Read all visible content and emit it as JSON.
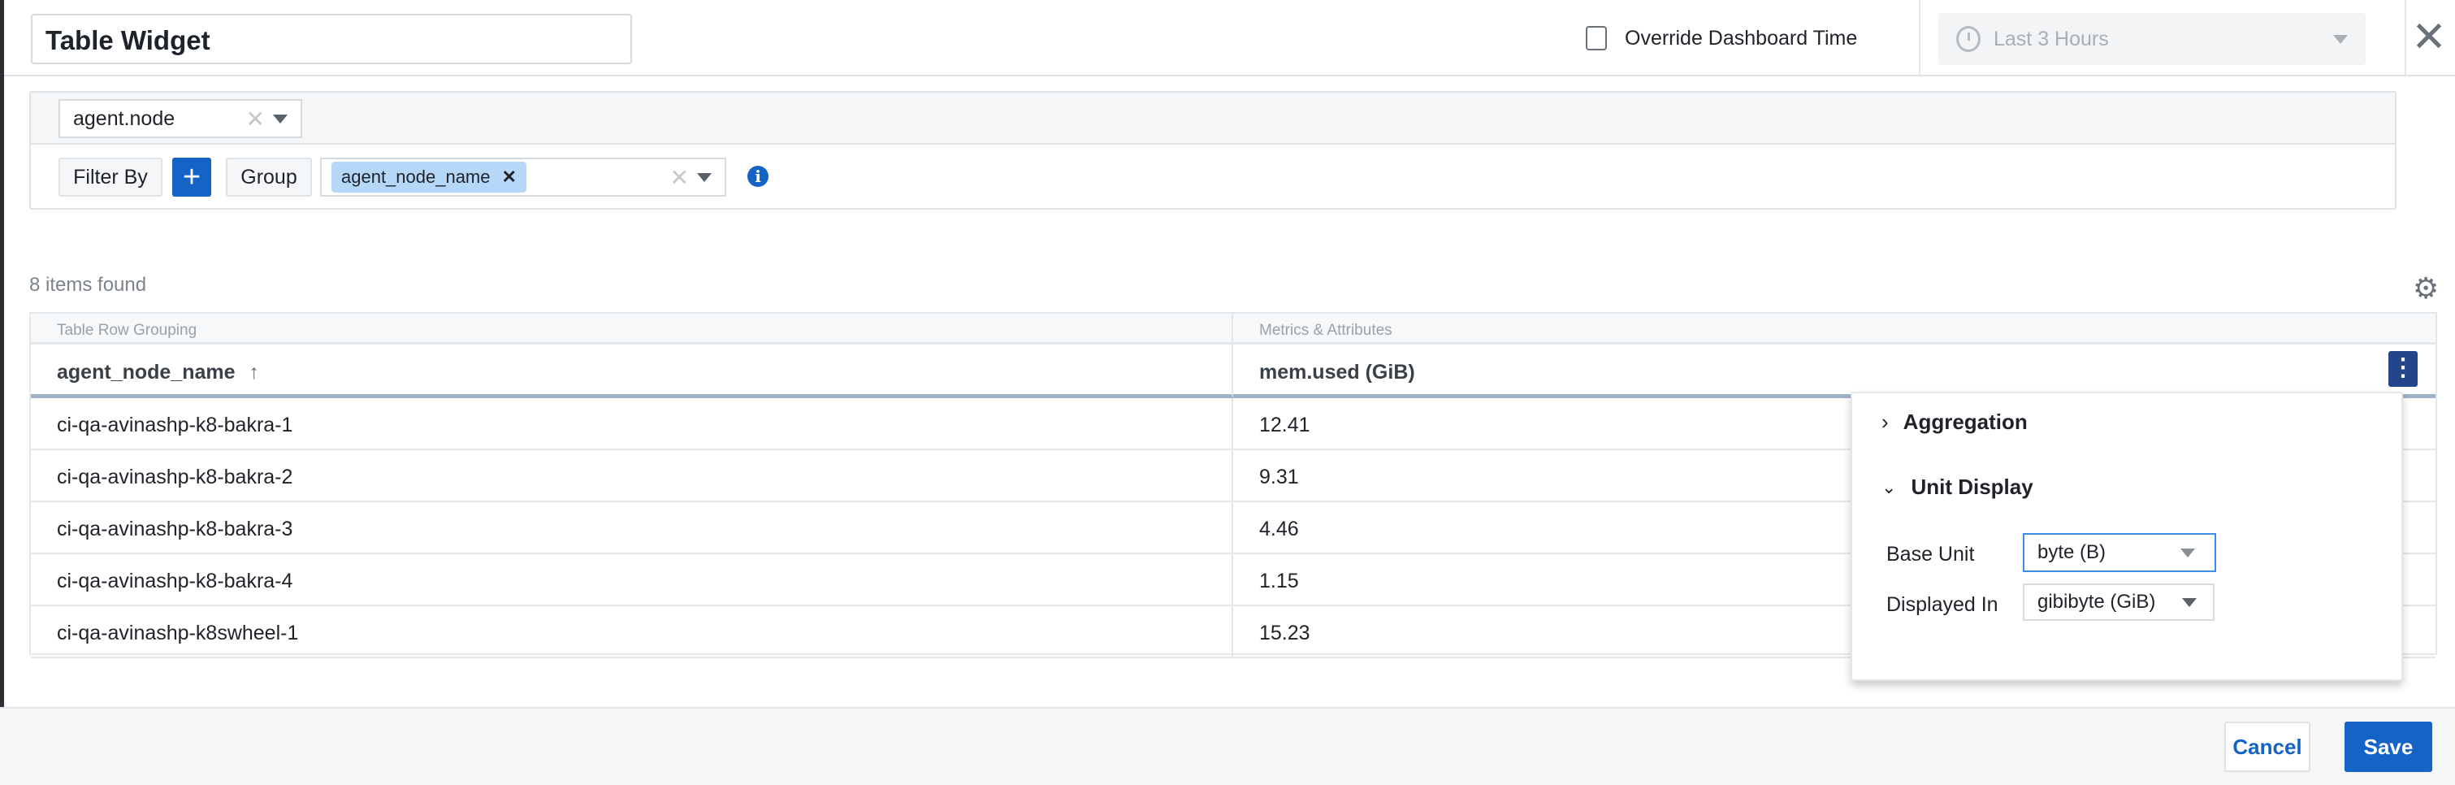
{
  "header": {
    "title": "Table Widget",
    "override_label": "Override Dashboard Time",
    "override_checked": false,
    "time_range": "Last 3 Hours",
    "close_label": "✕"
  },
  "query": {
    "object": "agent.node",
    "filter_by_label": "Filter By",
    "add_label": "+",
    "group_label": "Group",
    "group_chips": [
      "agent_node_name"
    ],
    "info_label": "i"
  },
  "results": {
    "count_text": "8 items found"
  },
  "table": {
    "group_headers": [
      "Table Row Grouping",
      "Metrics & Attributes"
    ],
    "columns": [
      "agent_node_name",
      "mem.used (GiB)"
    ],
    "sort_indicator": "↑",
    "rows": [
      [
        "ci-qa-avinashp-k8-bakra-1",
        "12.41"
      ],
      [
        "ci-qa-avinashp-k8-bakra-2",
        "9.31"
      ],
      [
        "ci-qa-avinashp-k8-bakra-3",
        "4.46"
      ],
      [
        "ci-qa-avinashp-k8-bakra-4",
        "1.15"
      ],
      [
        "ci-qa-avinashp-k8swheel-1",
        "15.23"
      ]
    ]
  },
  "column_menu": {
    "aggregation_label": "Aggregation",
    "aggregation_expanded": false,
    "unit_display_label": "Unit Display",
    "unit_display_expanded": true,
    "base_unit_label": "Base Unit",
    "base_unit_value": "byte (B)",
    "displayed_in_label": "Displayed In",
    "displayed_in_value": "gibibyte (GiB)"
  },
  "footer": {
    "cancel_label": "Cancel",
    "save_label": "Save"
  },
  "colors": {
    "accent": "#1563c5",
    "kebab": "#234589",
    "chip": "#b5d8f8"
  }
}
